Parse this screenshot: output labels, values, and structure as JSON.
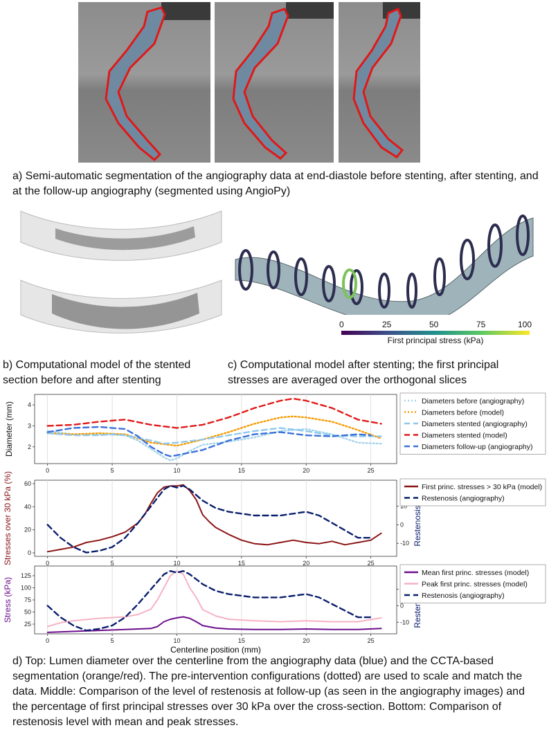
{
  "captions": {
    "a": "a) Semi-automatic segmentation of the angiography data at end-diastole before stenting, after stenting, and at the follow-up angiography (segmented using AngioPy)",
    "b": "b) Computational model of the stented section before and after stenting",
    "c": "c) Computational model after stenting; the first principal stresses are averaged over the orthogonal slices",
    "d": "d) Top: Lumen diameter over the centerline from the angiography data (blue) and the CCTA-based segmentation (orange/red). The pre-intervention configurations (dotted) are used to scale and match the data. Middle: Comparison of the level of restenosis at follow-up (as seen in the angiography images) and the percentage of first principal stresses over 30 kPa over the cross-section. Bottom: Comparison of restenosis level with mean and peak stresses."
  },
  "colorbar": {
    "ticks": [
      "0",
      "25",
      "50",
      "75",
      "100"
    ],
    "label": "First principal stress (kPa)"
  },
  "chart_data": [
    {
      "type": "line",
      "xlabel": "",
      "ylabel": "Diameter (mm)",
      "xlim": [
        -1,
        27
      ],
      "ylim": [
        1.2,
        4.5
      ],
      "xticks": [
        0,
        5,
        10,
        15,
        20,
        25
      ],
      "yticks": [
        2,
        3,
        4
      ],
      "grid": "vertical",
      "legend": "right",
      "series": [
        {
          "name": "Diameters before (angiography)",
          "color": "#a6d4ec",
          "style": "dotted",
          "x": [
            0,
            2,
            4,
            6,
            7,
            8,
            9,
            9.5,
            10,
            11,
            12,
            14,
            16,
            18,
            20,
            22,
            24,
            25.8
          ],
          "y": [
            2.75,
            2.6,
            2.6,
            2.55,
            2.3,
            1.9,
            1.5,
            1.35,
            1.45,
            1.8,
            2.1,
            2.25,
            2.45,
            2.75,
            2.85,
            2.6,
            2.2,
            2.15
          ]
        },
        {
          "name": "Diameters before (model)",
          "color": "#f59b00",
          "style": "dotted",
          "x": [
            0,
            2,
            4,
            6,
            8,
            10,
            12,
            14,
            16,
            18,
            19,
            20,
            22,
            24,
            25.8
          ],
          "y": [
            2.65,
            2.6,
            2.65,
            2.6,
            2.2,
            2.05,
            2.35,
            2.7,
            3.1,
            3.4,
            3.45,
            3.4,
            3.2,
            2.8,
            2.4
          ]
        },
        {
          "name": "Diameters stented (angiography)",
          "color": "#8ec8ee",
          "style": "dashed",
          "x": [
            0,
            2,
            4,
            5,
            6,
            8,
            9,
            10,
            12,
            14,
            16,
            18,
            20,
            22,
            24,
            25.8
          ],
          "y": [
            2.65,
            2.55,
            2.55,
            2.6,
            2.55,
            2.3,
            2.15,
            2.2,
            2.35,
            2.55,
            2.75,
            2.9,
            2.75,
            2.55,
            2.5,
            2.5
          ]
        },
        {
          "name": "Diameters stented (model)",
          "color": "#e11a1a",
          "style": "dashed",
          "x": [
            0,
            2,
            4,
            6,
            8,
            10,
            12,
            14,
            16,
            18,
            19,
            20,
            22,
            24,
            25.8
          ],
          "y": [
            3.0,
            3.05,
            3.2,
            3.3,
            3.05,
            2.9,
            3.05,
            3.4,
            3.85,
            4.2,
            4.3,
            4.2,
            3.85,
            3.3,
            3.1
          ]
        },
        {
          "name": "Diameters follow-up (angiography)",
          "color": "#3a70d8",
          "style": "dashed",
          "x": [
            0,
            2,
            4,
            6,
            7,
            8,
            9,
            9.5,
            10,
            12,
            14,
            16,
            18,
            20,
            22,
            24,
            25
          ],
          "y": [
            2.7,
            2.9,
            2.95,
            2.85,
            2.5,
            2.0,
            1.65,
            1.55,
            1.6,
            1.85,
            2.3,
            2.6,
            2.7,
            2.55,
            2.5,
            2.6,
            2.55
          ]
        }
      ]
    },
    {
      "type": "line",
      "xlabel": "",
      "ylabel": "Stresses over 30 kPa (%)",
      "y2label": "Restenosis (%)",
      "xlim": [
        -1,
        27
      ],
      "ylim": [
        -3,
        63
      ],
      "y2lim": [
        -17,
        24
      ],
      "xticks": [
        0,
        5,
        10,
        15,
        20,
        25
      ],
      "yticks": [
        0,
        20,
        40,
        60
      ],
      "y2ticks": [
        -10,
        0,
        10
      ],
      "grid": "vertical",
      "legend": "right",
      "series": [
        {
          "name": "First princ. stresses > 30 kPa (model)",
          "color": "#8b1414",
          "style": "solid",
          "axis": "left",
          "x": [
            0,
            1,
            2,
            3,
            4,
            5,
            6,
            6.5,
            7,
            7.5,
            8,
            8.5,
            9,
            9.5,
            10,
            10.5,
            11,
            11.5,
            12,
            12.5,
            13,
            14,
            15,
            16,
            17,
            18,
            19,
            20,
            21,
            22,
            23,
            24,
            25,
            25.8
          ],
          "y": [
            1,
            3,
            5,
            9,
            11,
            14,
            18,
            22,
            26,
            33,
            43,
            52,
            57,
            58,
            58,
            59,
            54,
            46,
            33,
            27,
            22,
            16,
            11,
            8,
            7,
            9,
            11,
            9,
            8,
            10,
            7,
            9,
            11,
            17
          ]
        },
        {
          "name": "Restenosis (angiography)",
          "color": "#0a1f6e",
          "style": "dashed",
          "axis": "right",
          "x": [
            0,
            1,
            2,
            3,
            4,
            5,
            6,
            7,
            8,
            9,
            9.5,
            10,
            10.5,
            11,
            12,
            13,
            14,
            15,
            16,
            17,
            18,
            19,
            20,
            21,
            22,
            23,
            24,
            25
          ],
          "y": [
            0,
            -7,
            -12,
            -15,
            -14,
            -12,
            -7,
            1,
            10,
            19,
            21,
            20,
            21,
            19,
            13,
            9,
            7,
            6,
            5,
            5,
            5,
            6,
            7,
            5,
            1,
            -3,
            -7,
            -7
          ]
        }
      ]
    },
    {
      "type": "line",
      "xlabel": "Centerline position (mm)",
      "ylabel": "Stress (kPa)",
      "y2label": "Restenosis (%)",
      "xlim": [
        -1,
        27
      ],
      "ylim": [
        5,
        145
      ],
      "y2lim": [
        -17,
        24
      ],
      "xticks": [
        0,
        5,
        10,
        15,
        20,
        25
      ],
      "xticklabels": [
        "0",
        "5",
        "10",
        "15",
        "20",
        "25"
      ],
      "yticks": [
        25,
        50,
        75,
        100,
        125
      ],
      "y2ticks": [
        -10,
        0,
        10
      ],
      "grid": "vertical",
      "legend": "right",
      "series": [
        {
          "name": "Mean first princ. stresses (model)",
          "color": "#6b0d8b",
          "style": "solid",
          "axis": "left",
          "x": [
            0,
            2,
            4,
            6,
            8,
            8.5,
            9,
            9.5,
            10,
            10.5,
            11,
            11.5,
            12,
            13,
            14,
            16,
            18,
            20,
            22,
            24,
            25.8
          ],
          "y": [
            8,
            10,
            12,
            14,
            16,
            20,
            30,
            35,
            38,
            40,
            37,
            30,
            22,
            17,
            15,
            14,
            14,
            15,
            14,
            14,
            16
          ]
        },
        {
          "name": "Peak first princ. stresses (model)",
          "color": "#f6b2c4",
          "style": "solid",
          "axis": "left",
          "x": [
            0,
            1,
            2,
            4,
            6,
            7,
            8,
            8.5,
            9,
            9.5,
            10,
            10.5,
            11,
            11.5,
            12,
            13,
            14,
            16,
            18,
            20,
            22,
            24,
            25.8
          ],
          "y": [
            20,
            28,
            32,
            37,
            40,
            45,
            56,
            75,
            100,
            125,
            135,
            128,
            100,
            80,
            55,
            42,
            35,
            32,
            30,
            32,
            30,
            30,
            38
          ]
        },
        {
          "name": "Restenosis (angiography)",
          "color": "#0a1f6e",
          "style": "dashed",
          "axis": "right",
          "x": [
            0,
            1,
            2,
            3,
            4,
            5,
            6,
            7,
            8,
            9,
            9.5,
            10,
            10.5,
            11,
            12,
            13,
            14,
            15,
            16,
            17,
            18,
            19,
            20,
            21,
            22,
            23,
            24,
            25
          ],
          "y": [
            0,
            -7,
            -12,
            -15,
            -14,
            -12,
            -7,
            1,
            10,
            19,
            21,
            20,
            21,
            19,
            13,
            9,
            7,
            6,
            5,
            5,
            5,
            6,
            7,
            5,
            1,
            -3,
            -7,
            -7
          ]
        }
      ]
    }
  ]
}
